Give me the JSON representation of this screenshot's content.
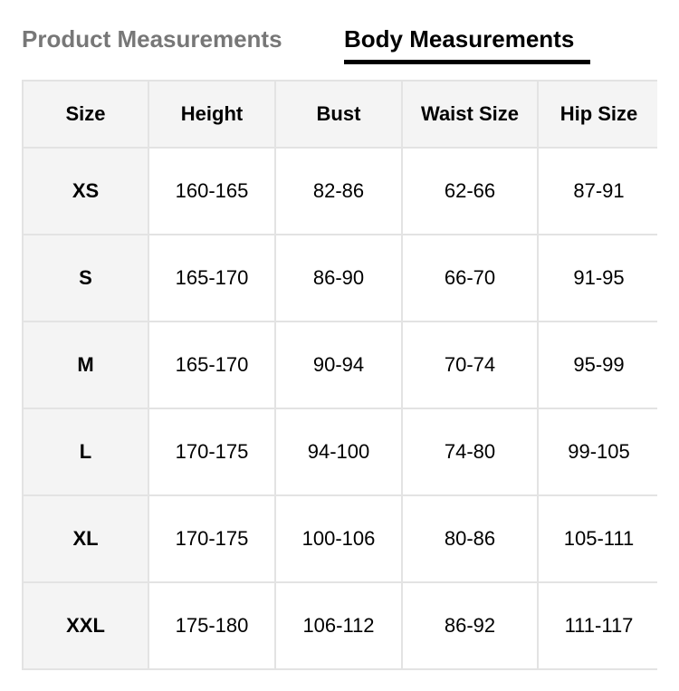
{
  "tabs": [
    {
      "label": "Product Measurements",
      "active": false
    },
    {
      "label": "Body Measurements",
      "active": true
    }
  ],
  "table": {
    "headers": [
      "Size",
      "Height",
      "Bust",
      "Waist Size",
      "Hip Size"
    ],
    "rows": [
      [
        "XS",
        "160-165",
        "82-86",
        "62-66",
        "87-91"
      ],
      [
        "S",
        "165-170",
        "86-90",
        "66-70",
        "91-95"
      ],
      [
        "M",
        "165-170",
        "90-94",
        "70-74",
        "95-99"
      ],
      [
        "L",
        "170-175",
        "94-100",
        "74-80",
        "99-105"
      ],
      [
        "XL",
        "170-175",
        "100-106",
        "80-86",
        "105-111"
      ],
      [
        "XXL",
        "175-180",
        "106-112",
        "86-92",
        "111-117"
      ]
    ]
  },
  "colors": {
    "active_tab": "#000000",
    "inactive_tab": "#777777",
    "header_bg": "#f4f4f4",
    "border": "#e3e3e3"
  }
}
